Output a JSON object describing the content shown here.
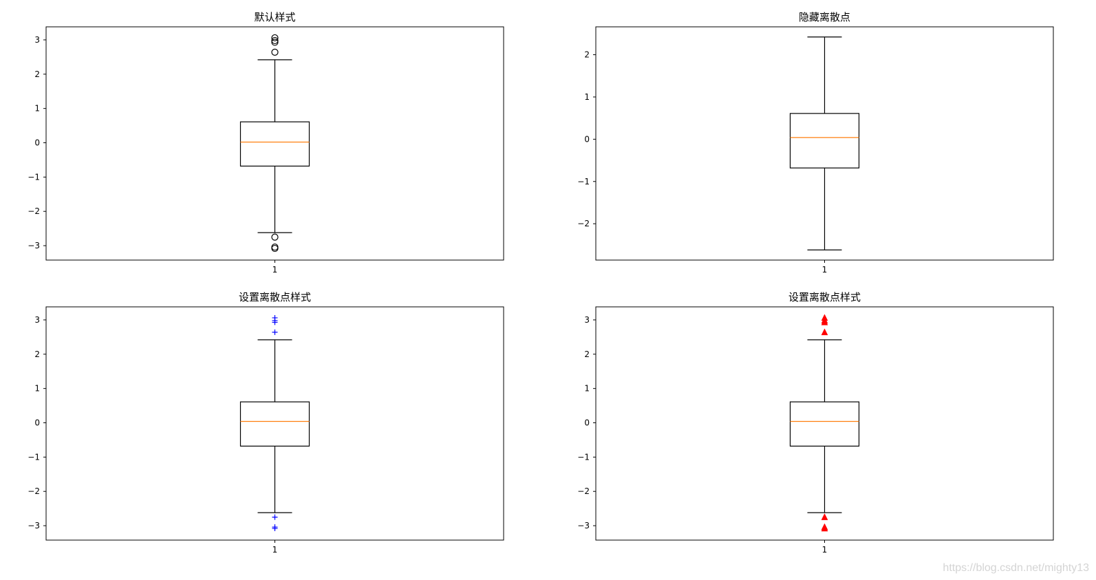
{
  "chart_data": [
    {
      "type": "boxplot",
      "title": "默认样式",
      "categories": [
        "1"
      ],
      "yticks": [
        -3,
        -2,
        -1,
        0,
        1,
        2,
        3
      ],
      "ylim": [
        -3.42,
        3.38
      ],
      "box": {
        "q1": -0.68,
        "median": 0.02,
        "q3": 0.61,
        "whisker_low": -2.62,
        "whisker_high": 2.42
      },
      "outliers": [
        2.64,
        2.93,
        2.98,
        3.06,
        -2.75,
        -3.04,
        -3.08
      ],
      "flier_style": {
        "marker": "circle",
        "color": "#000000",
        "filled": false
      },
      "median_color": "#ff7f0e"
    },
    {
      "type": "boxplot",
      "title": "隐藏离散点",
      "categories": [
        "1"
      ],
      "yticks": [
        -2,
        -1,
        0,
        1,
        2
      ],
      "ylim": [
        -2.86,
        2.66
      ],
      "box": {
        "q1": -0.68,
        "median": 0.04,
        "q3": 0.61,
        "whisker_low": -2.62,
        "whisker_high": 2.42
      },
      "outliers": [],
      "flier_style": null,
      "median_color": "#ff7f0e"
    },
    {
      "type": "boxplot",
      "title": "设置离散点样式",
      "categories": [
        "1"
      ],
      "yticks": [
        -3,
        -2,
        -1,
        0,
        1,
        2,
        3
      ],
      "ylim": [
        -3.42,
        3.38
      ],
      "box": {
        "q1": -0.68,
        "median": 0.04,
        "q3": 0.61,
        "whisker_low": -2.62,
        "whisker_high": 2.42
      },
      "outliers": [
        2.64,
        2.93,
        2.98,
        3.06,
        -2.75,
        -3.04,
        -3.08
      ],
      "flier_style": {
        "marker": "plus",
        "color": "#0000ff",
        "filled": false
      },
      "median_color": "#ff7f0e"
    },
    {
      "type": "boxplot",
      "title": "设置离散点样式",
      "categories": [
        "1"
      ],
      "yticks": [
        -3,
        -2,
        -1,
        0,
        1,
        2,
        3
      ],
      "ylim": [
        -3.42,
        3.38
      ],
      "box": {
        "q1": -0.68,
        "median": 0.04,
        "q3": 0.61,
        "whisker_low": -2.62,
        "whisker_high": 2.42
      },
      "outliers": [
        2.64,
        2.93,
        2.98,
        3.06,
        -2.75,
        -3.04,
        -3.08
      ],
      "flier_style": {
        "marker": "triangle-up",
        "color": "#ff0000",
        "filled": true
      },
      "median_color": "#ff7f0e"
    }
  ],
  "watermark": "https://blog.csdn.net/mighty13"
}
